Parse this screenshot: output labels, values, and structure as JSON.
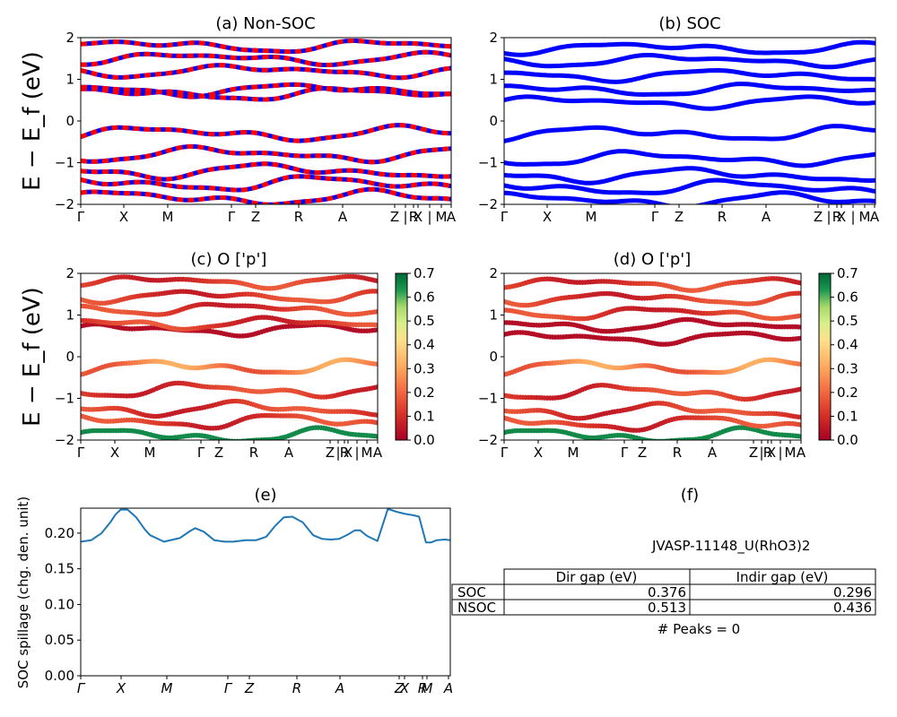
{
  "kpoints": [
    "Γ",
    "X",
    "M",
    "Γ",
    "Z",
    "R",
    "A",
    "Z",
    "|",
    "R",
    "X",
    "|",
    "M",
    "A"
  ],
  "colors": {
    "nonsoc_a": "#ff0000",
    "nonsoc_b": "#0000ff",
    "soc": "#0000ff",
    "spillage_line": "#1f77b4",
    "colormap": "RdYlGn"
  },
  "panels": {
    "a": {
      "title": "(a) Non-SOC",
      "ylabel": "E − E_f (eV)"
    },
    "b": {
      "title": "(b) SOC"
    },
    "c": {
      "title": "(c)  O ['p']",
      "ylabel": "E − E_f (eV)"
    },
    "d": {
      "title": "(d) O ['p']"
    },
    "e": {
      "title": "(e)",
      "ylabel": "SOC spillage (chg. den. unit)"
    },
    "f": {
      "title": "(f)"
    }
  },
  "chart_data": [
    {
      "id": "a",
      "type": "line",
      "title": "(a) Non-SOC",
      "ylabel": "E − E_f (eV)",
      "ylim": [
        -2,
        2
      ],
      "yticks": [
        -2,
        -1,
        0,
        1,
        2
      ],
      "xticklabels": [
        "Γ",
        "X",
        "M",
        "Γ",
        "Z",
        "R",
        "A",
        "Z",
        "|",
        "R",
        "X",
        "|",
        "M",
        "A"
      ],
      "style": "dashed red/blue",
      "bands_at_gamma": [
        -1.85,
        -1.5,
        -1.2,
        -0.8,
        -0.3,
        0.65,
        0.75,
        1.2,
        1.5,
        1.8
      ]
    },
    {
      "id": "b",
      "type": "line",
      "title": "(b) SOC",
      "ylim": [
        -2,
        2
      ],
      "yticks": [
        -2,
        -1,
        0,
        1,
        2
      ],
      "xticklabels": [
        "Γ",
        "X",
        "M",
        "Γ",
        "Z",
        "R",
        "A",
        "Z",
        "|",
        "R",
        "X",
        "|",
        "M",
        "A"
      ],
      "style": "solid blue",
      "bands_at_gamma": [
        -1.9,
        -1.6,
        -1.3,
        -0.9,
        -0.3,
        0.45,
        0.75,
        1.1,
        1.45,
        1.75
      ]
    },
    {
      "id": "c",
      "type": "scatter",
      "title": "(c)  O ['p']",
      "ylabel": "E − E_f (eV)",
      "ylim": [
        -2,
        2
      ],
      "yticks": [
        -2,
        -1,
        0,
        1,
        2
      ],
      "colorbar": {
        "min": 0.0,
        "max": 0.7,
        "ticks": [
          "0.0",
          "0.1",
          "0.2",
          "0.3",
          "0.4",
          "0.5",
          "0.6",
          "0.7"
        ]
      },
      "xticklabels": [
        "Γ",
        "X",
        "M",
        "Γ",
        "Z",
        "R",
        "A",
        "Z",
        "|",
        "R",
        "X",
        "|",
        "M",
        "A"
      ]
    },
    {
      "id": "d",
      "type": "scatter",
      "title": "(d) O ['p']",
      "ylim": [
        -2,
        2
      ],
      "yticks": [
        -2,
        -1,
        0,
        1,
        2
      ],
      "colorbar": {
        "min": 0.0,
        "max": 0.7,
        "ticks": [
          "0.0",
          "0.1",
          "0.2",
          "0.3",
          "0.4",
          "0.5",
          "0.6",
          "0.7"
        ]
      },
      "xticklabels": [
        "Γ",
        "X",
        "M",
        "Γ",
        "Z",
        "R",
        "A",
        "Z",
        "|",
        "R",
        "X",
        "|",
        "M",
        "A"
      ]
    },
    {
      "id": "e",
      "type": "line",
      "title": "(e)",
      "ylabel": "SOC spillage (chg. den. unit)",
      "ylim": [
        0,
        0.235
      ],
      "yticks": [
        "0.00",
        "0.05",
        "0.10",
        "0.15",
        "0.20"
      ],
      "xticklabels": [
        "Γ",
        "X",
        "M",
        "Γ",
        "Z",
        "R",
        "A",
        "Z",
        "X",
        "R",
        "M",
        "A"
      ],
      "x": [
        0,
        0.3,
        0.6,
        0.85,
        1.0,
        1.15,
        1.35,
        1.6,
        1.85,
        2.0,
        2.4,
        2.85,
        3.15,
        3.3,
        3.55,
        3.85,
        4.15,
        4.4,
        4.75,
        5.05,
        5.35,
        5.6,
        5.85,
        6.1,
        6.4,
        6.7,
        6.95,
        7.2,
        7.45,
        7.7,
        7.9,
        8.05,
        8.25,
        8.55,
        8.85,
        9.1,
        9.35,
        9.6,
        9.75,
        9.95,
        10.1,
        10.25,
        10.5,
        10.65
      ],
      "values": [
        0.188,
        0.19,
        0.2,
        0.215,
        0.226,
        0.233,
        0.233,
        0.222,
        0.205,
        0.197,
        0.188,
        0.193,
        0.203,
        0.207,
        0.202,
        0.19,
        0.188,
        0.188,
        0.19,
        0.19,
        0.195,
        0.21,
        0.222,
        0.223,
        0.215,
        0.197,
        0.192,
        0.191,
        0.192,
        0.198,
        0.204,
        0.204,
        0.196,
        0.189,
        0.234,
        0.23,
        0.227,
        0.225,
        0.223,
        0.187,
        0.187,
        0.19,
        0.191,
        0.19
      ]
    }
  ],
  "table": {
    "label": "JVASP-11148_U(RhO3)2",
    "headers": [
      "",
      "Dir gap (eV)",
      "Indir gap (eV)"
    ],
    "rows": [
      {
        "name": "SOC",
        "dir": "0.376",
        "indir": "0.296"
      },
      {
        "name": "NSOC",
        "dir": "0.513",
        "indir": "0.436"
      }
    ],
    "peaks": "# Peaks = 0"
  }
}
